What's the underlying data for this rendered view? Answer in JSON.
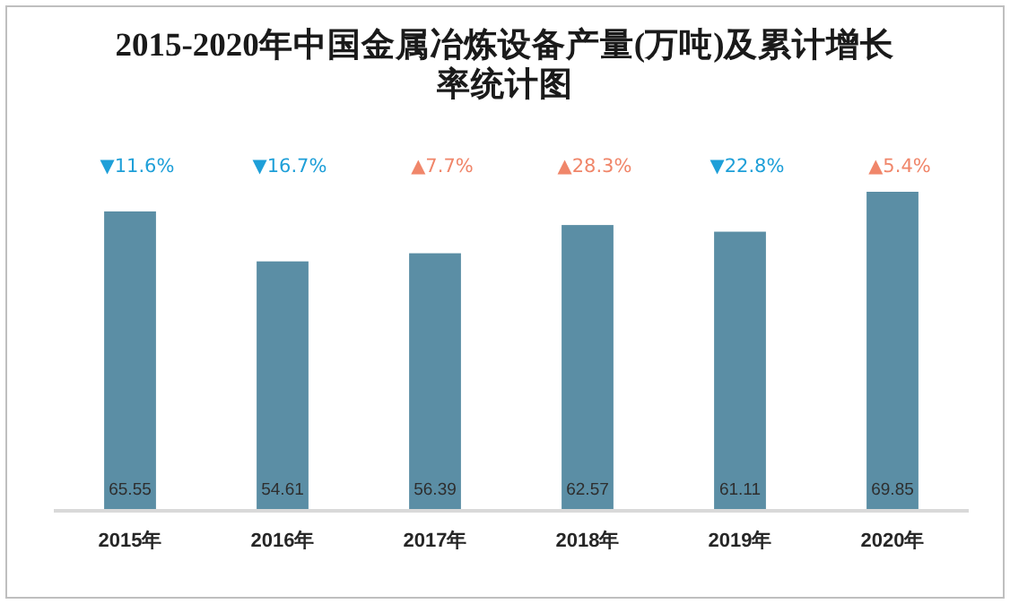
{
  "chart_data": {
    "type": "bar",
    "title": "2015-2020年中国金属冶炼设备产量(万吨)及累计增长率统计图",
    "categories": [
      "2015年",
      "2016年",
      "2017年",
      "2018年",
      "2019年",
      "2020年"
    ],
    "values": [
      65.55,
      54.61,
      56.39,
      62.57,
      61.11,
      69.85
    ],
    "color": "#5b8ea5",
    "data_labels": true,
    "annotations": [
      "▼11.6%",
      "▼16.7%",
      "▲7.7%",
      "▲28.3%",
      "▼22.8%",
      "▲5.4%"
    ]
  }
}
